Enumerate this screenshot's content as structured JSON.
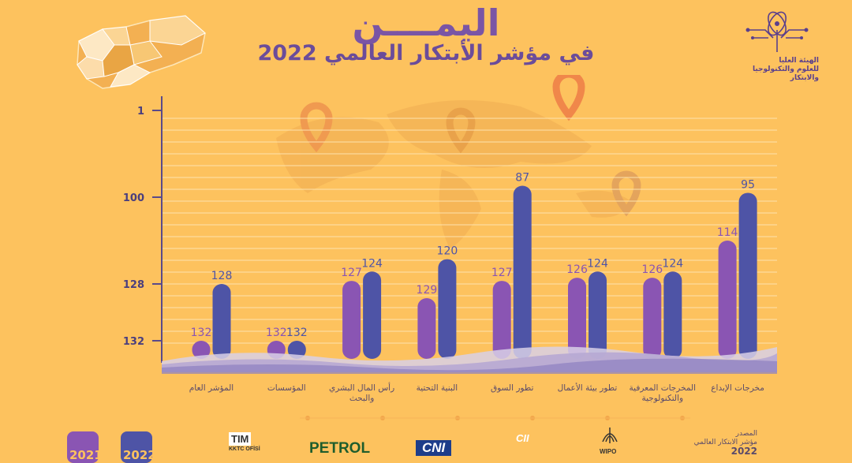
{
  "header": {
    "title": "اليمــــن",
    "subtitle": "في مؤشر الأبتكار العالمي 2022",
    "org_name": [
      "الهيئة العليا",
      "للعلوم والتكنولوجيا",
      "والابتكار"
    ]
  },
  "chart_data": {
    "type": "bar",
    "categories": [
      "المؤشر العام",
      "المؤسسات",
      "رأس المال البشري والبحث",
      "البنية التحتية",
      "تطور السوق",
      "تطور بيئة الأعمال",
      "المخرجات المعرفية والتكنولوجية",
      "مخرجات الإبداع"
    ],
    "series": [
      {
        "name": "2021",
        "values": [
          132,
          132,
          127,
          129,
          127,
          126,
          126,
          114
        ],
        "color": "#8a55b3"
      },
      {
        "name": "2022",
        "values": [
          128,
          132,
          124,
          120,
          87,
          124,
          124,
          95
        ],
        "color": "#4e54a6"
      }
    ],
    "y_ticks": [
      "1",
      "100",
      "128",
      "132"
    ],
    "y_inverted": true,
    "grid": true
  },
  "source": {
    "label": "المصدر",
    "text": "مؤشر الابتكار العالمي",
    "year": "2022"
  },
  "legend": {
    "y2021": "2021",
    "y2022": "2022"
  },
  "partners": [
    "TIM",
    "KKTC OFİSİ",
    "PETROL",
    "CNI",
    "CII",
    "WIPO"
  ]
}
